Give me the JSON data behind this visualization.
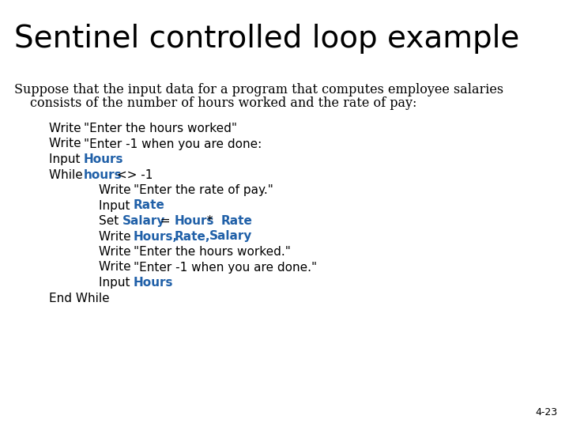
{
  "title": "Sentinel controlled loop example",
  "subtitle_line1": "Suppose that the input data for a program that computes employee salaries",
  "subtitle_line2": "consists of the number of hours worked and the rate of pay:",
  "slide_number": "4-23",
  "background_color": "#ffffff",
  "title_color": "#000000",
  "subtitle_color": "#000000",
  "highlight_color": "#2060a8",
  "title_fontsize": 28,
  "subtitle_fontsize": 11.5,
  "code_fontsize": 11.0,
  "slide_num_fontsize": 9,
  "code_lines": [
    {
      "indent": 1,
      "parts": [
        {
          "text": "Write ",
          "bold": false,
          "color": "#000000"
        },
        {
          "text": "\"Enter the hours worked\"",
          "bold": false,
          "color": "#000000"
        }
      ]
    },
    {
      "indent": 1,
      "parts": [
        {
          "text": "Write ",
          "bold": false,
          "color": "#000000"
        },
        {
          "text": "\"Enter -1 when you are done:",
          "bold": false,
          "color": "#000000"
        }
      ]
    },
    {
      "indent": 1,
      "parts": [
        {
          "text": "Input ",
          "bold": false,
          "color": "#000000"
        },
        {
          "text": "Hours",
          "bold": true,
          "color": "#2060a8"
        }
      ]
    },
    {
      "indent": 1,
      "parts": [
        {
          "text": "While ",
          "bold": false,
          "color": "#000000"
        },
        {
          "text": "hours",
          "bold": true,
          "color": "#2060a8"
        },
        {
          "text": " <> -1",
          "bold": false,
          "color": "#000000"
        }
      ]
    },
    {
      "indent": 2,
      "parts": [
        {
          "text": "Write ",
          "bold": false,
          "color": "#000000"
        },
        {
          "text": "\"Enter the rate of pay.\"",
          "bold": false,
          "color": "#000000"
        }
      ]
    },
    {
      "indent": 2,
      "parts": [
        {
          "text": "Input ",
          "bold": false,
          "color": "#000000"
        },
        {
          "text": "Rate",
          "bold": true,
          "color": "#2060a8"
        }
      ]
    },
    {
      "indent": 2,
      "parts": [
        {
          "text": "Set ",
          "bold": false,
          "color": "#000000"
        },
        {
          "text": "Salary",
          "bold": true,
          "color": "#2060a8"
        },
        {
          "text": " = ",
          "bold": false,
          "color": "#000000"
        },
        {
          "text": "Hours",
          "bold": true,
          "color": "#2060a8"
        },
        {
          "text": " * ",
          "bold": false,
          "color": "#000000"
        },
        {
          "text": "Rate",
          "bold": true,
          "color": "#2060a8"
        }
      ]
    },
    {
      "indent": 2,
      "parts": [
        {
          "text": "Write ",
          "bold": false,
          "color": "#000000"
        },
        {
          "text": "Hours,",
          "bold": true,
          "color": "#2060a8"
        },
        {
          "text": " ",
          "bold": false,
          "color": "#000000"
        },
        {
          "text": "Rate,",
          "bold": true,
          "color": "#2060a8"
        },
        {
          "text": " ",
          "bold": false,
          "color": "#000000"
        },
        {
          "text": "Salary",
          "bold": true,
          "color": "#2060a8"
        }
      ]
    },
    {
      "indent": 2,
      "parts": [
        {
          "text": "Write ",
          "bold": false,
          "color": "#000000"
        },
        {
          "text": "\"Enter the hours worked.\"",
          "bold": false,
          "color": "#000000"
        }
      ]
    },
    {
      "indent": 2,
      "parts": [
        {
          "text": "Write ",
          "bold": false,
          "color": "#000000"
        },
        {
          "text": "\"Enter -1 when you are done.\"",
          "bold": false,
          "color": "#000000"
        }
      ]
    },
    {
      "indent": 2,
      "parts": [
        {
          "text": "Input ",
          "bold": false,
          "color": "#000000"
        },
        {
          "text": "Hours",
          "bold": true,
          "color": "#2060a8"
        }
      ]
    },
    {
      "indent": 1,
      "parts": [
        {
          "text": "End While",
          "bold": false,
          "color": "#000000"
        }
      ]
    }
  ]
}
